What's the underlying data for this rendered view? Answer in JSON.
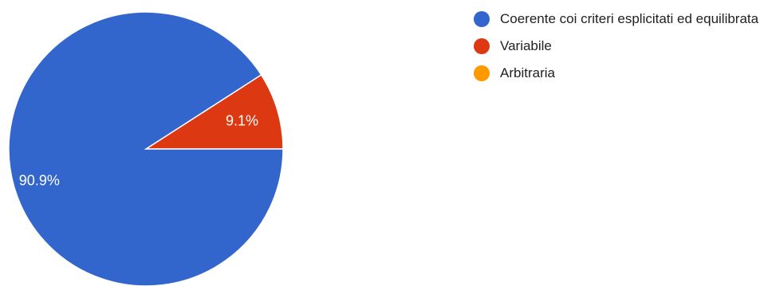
{
  "chart_data": {
    "type": "pie",
    "categories": [
      "Coerente coi criteri esplicitati ed equilibrata",
      "Variabile",
      "Arbitraria"
    ],
    "values": [
      90.9,
      9.1,
      0
    ],
    "labels": [
      "90.9%",
      "9.1%",
      ""
    ],
    "colors": [
      "#3366cc",
      "#dc3912",
      "#ff9900"
    ],
    "legend_position": "right"
  }
}
